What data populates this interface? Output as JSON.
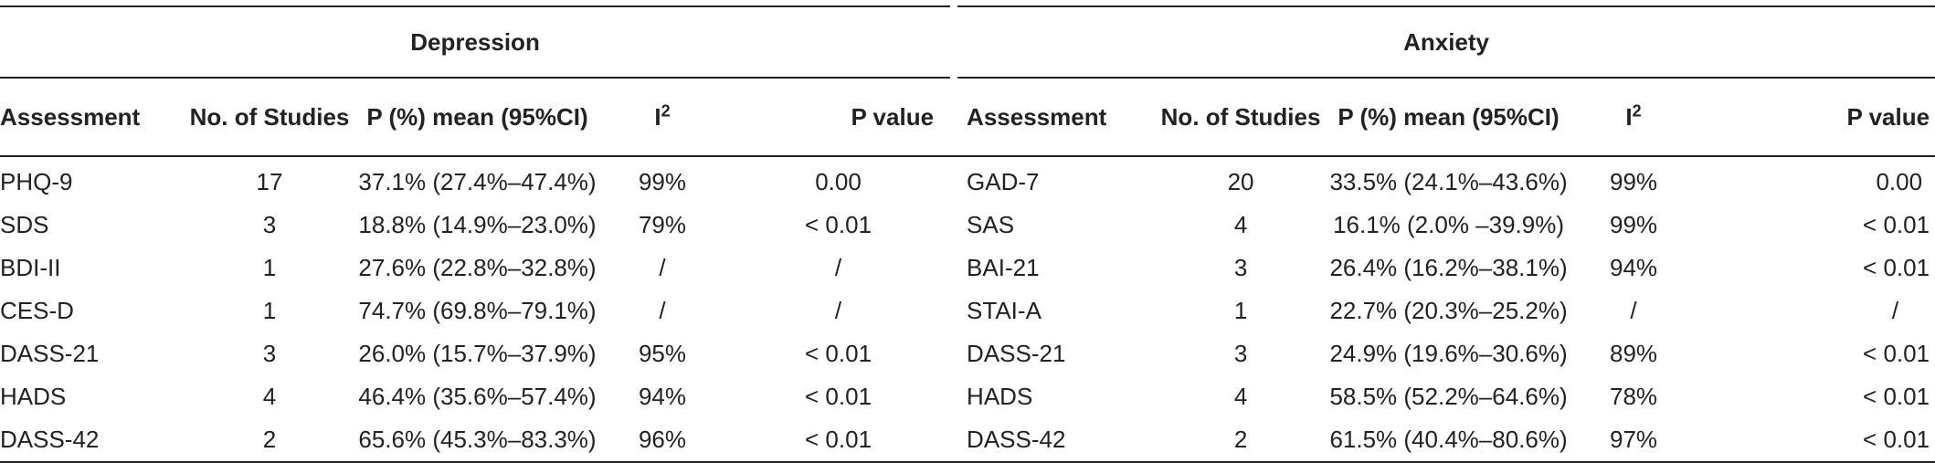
{
  "groups": {
    "left": "Depression",
    "right": "Anxiety"
  },
  "headers": {
    "assessment": "Assessment",
    "studies": "No. of Studies",
    "prevalence": "P (%) mean (95%CI)",
    "i2_base": "I",
    "i2_sup": "2",
    "pvalue": "P value"
  },
  "rows": [
    {
      "dep": [
        "PHQ-9",
        "17",
        "37.1% (27.4%–47.4%)",
        "99%",
        "0.00"
      ],
      "anx": [
        "GAD-7",
        "20",
        "33.5% (24.1%–43.6%)",
        "99%",
        "0.00"
      ]
    },
    {
      "dep": [
        "SDS",
        "3",
        "18.8% (14.9%–23.0%)",
        "79%",
        "< 0.01"
      ],
      "anx": [
        "SAS",
        "4",
        "16.1% (2.0% –39.9%)",
        "99%",
        "< 0.01"
      ]
    },
    {
      "dep": [
        "BDI-II",
        "1",
        "27.6% (22.8%–32.8%)",
        "/",
        "/"
      ],
      "anx": [
        "BAI-21",
        "3",
        "26.4% (16.2%–38.1%)",
        "94%",
        "< 0.01"
      ]
    },
    {
      "dep": [
        "CES-D",
        "1",
        "74.7% (69.8%–79.1%)",
        "/",
        "/"
      ],
      "anx": [
        "STAI-A",
        "1",
        "22.7% (20.3%–25.2%)",
        "/",
        "/"
      ]
    },
    {
      "dep": [
        "DASS-21",
        "3",
        "26.0% (15.7%–37.9%)",
        "95%",
        "< 0.01"
      ],
      "anx": [
        "DASS-21",
        "3",
        "24.9% (19.6%–30.6%)",
        "89%",
        "< 0.01"
      ]
    },
    {
      "dep": [
        "HADS",
        "4",
        "46.4% (35.6%–57.4%)",
        "94%",
        "< 0.01"
      ],
      "anx": [
        "HADS",
        "4",
        "58.5% (52.2%–64.6%)",
        "78%",
        "< 0.01"
      ]
    },
    {
      "dep": [
        "DASS-42",
        "2",
        "65.6% (45.3%–83.3%)",
        "96%",
        "< 0.01"
      ],
      "anx": [
        "DASS-42",
        "2",
        "61.5% (40.4%–80.6%)",
        "97%",
        "< 0.01"
      ]
    }
  ]
}
